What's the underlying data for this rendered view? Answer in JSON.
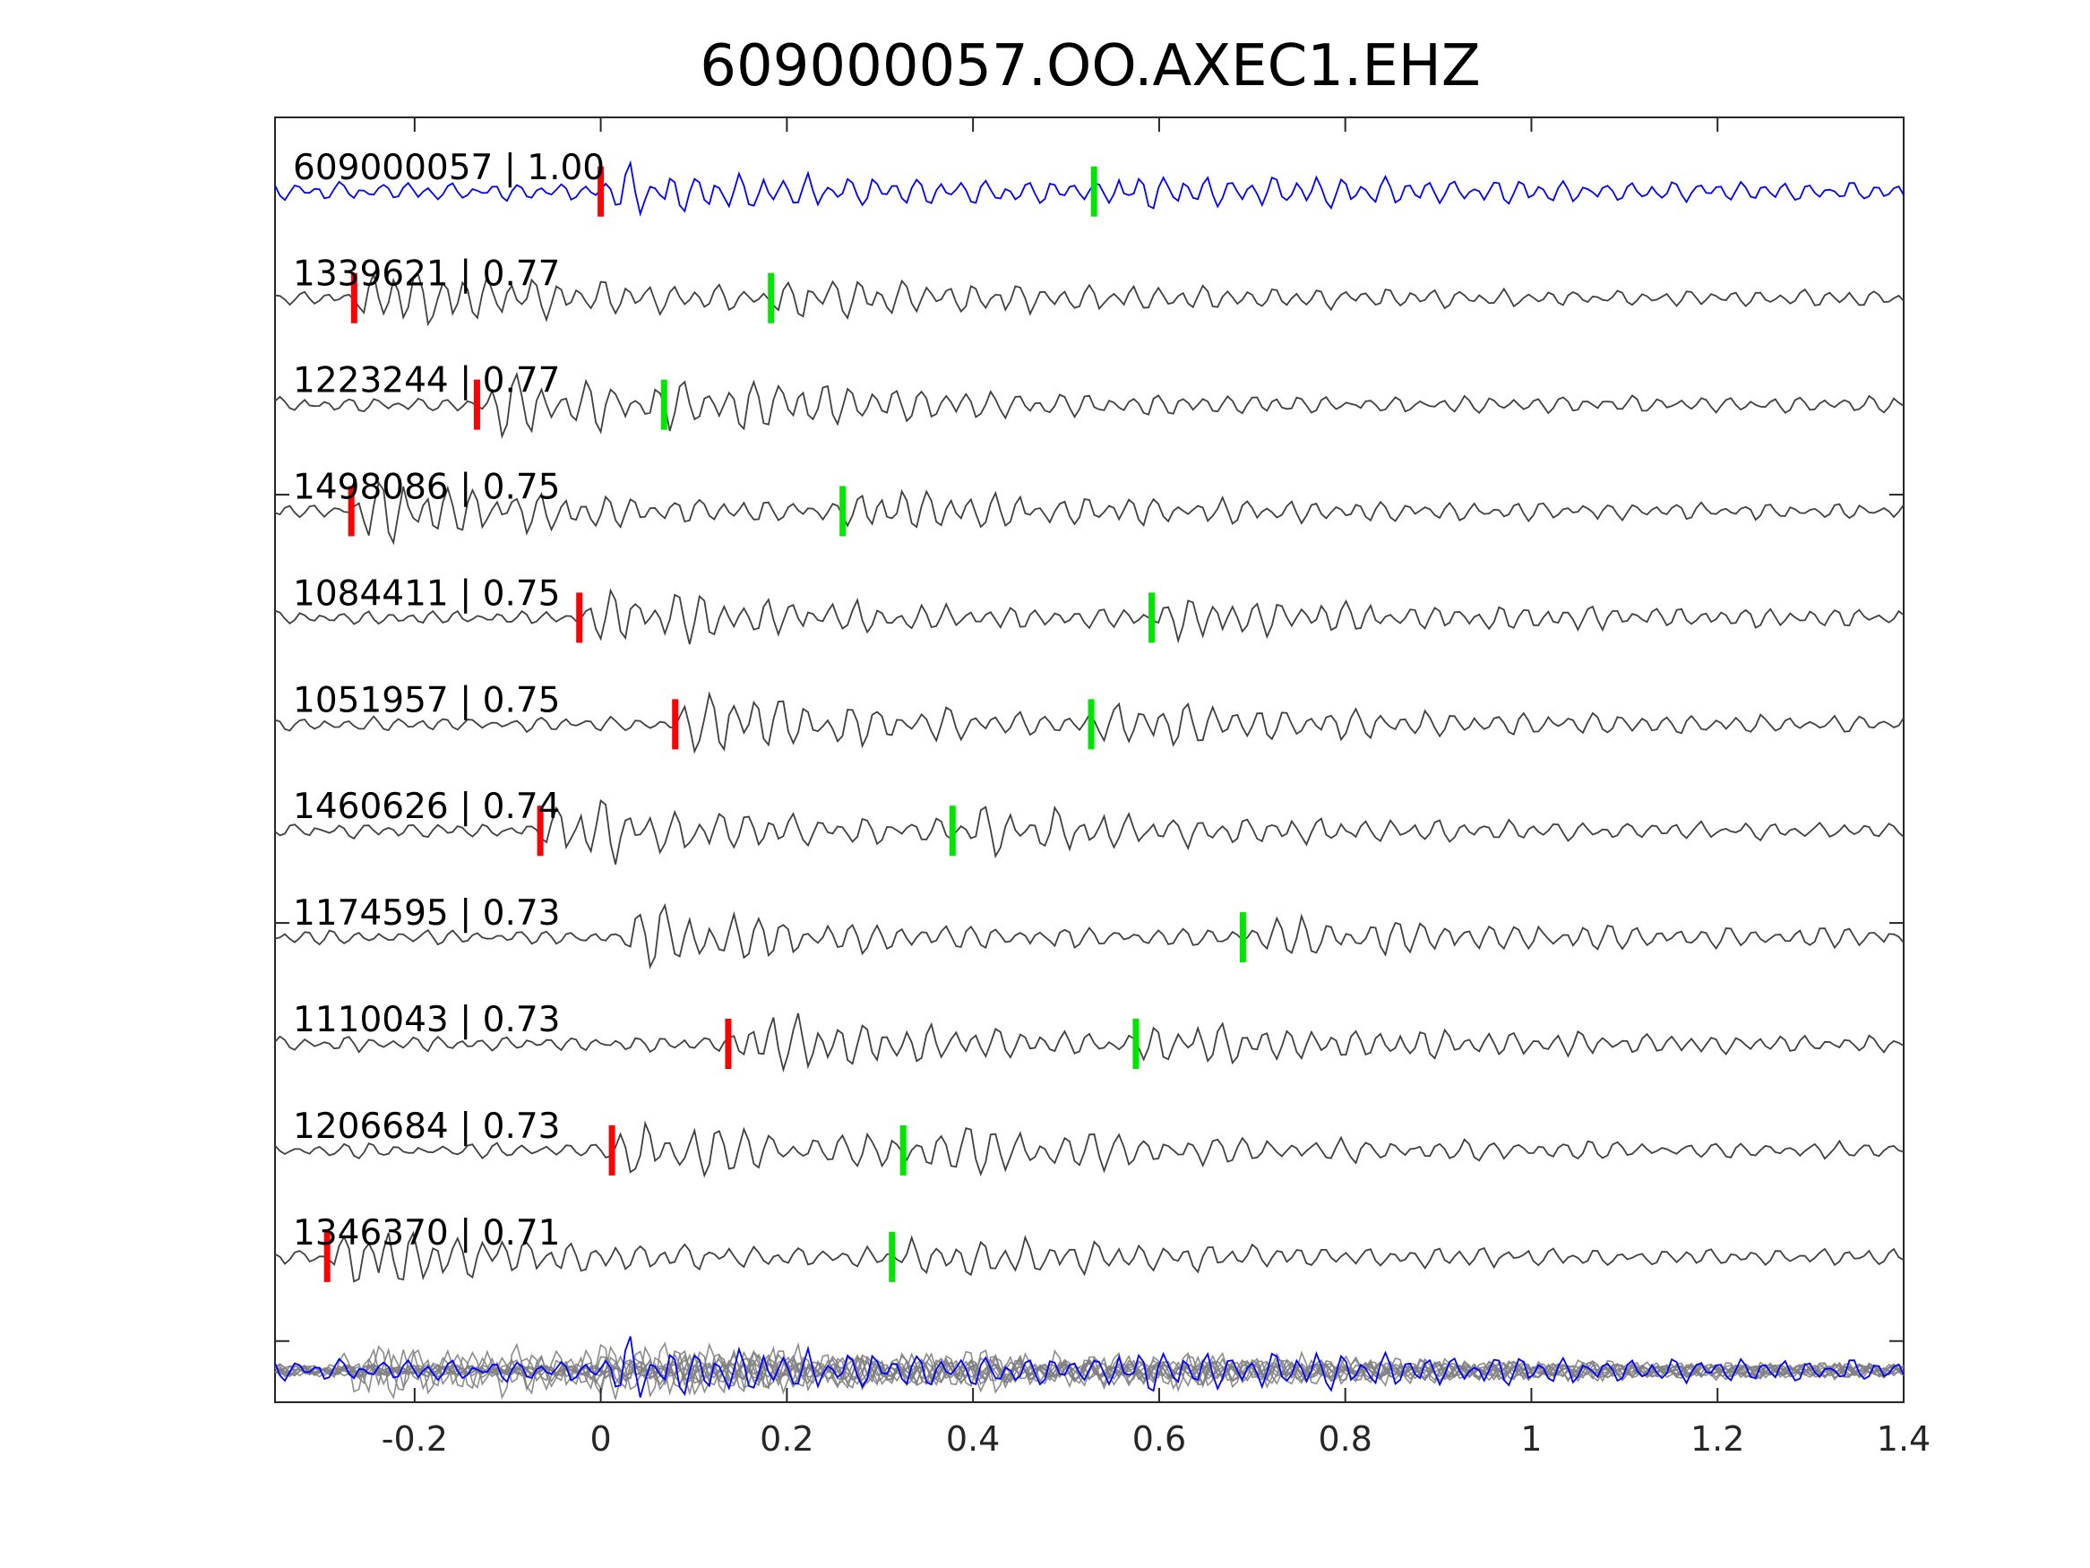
{
  "chart_data": {
    "type": "line",
    "title": "609000057.OO.AXEC1.EHZ",
    "xlabel": "",
    "ylabel": "",
    "xlim": [
      -0.35,
      1.4
    ],
    "xticks": [
      -0.2,
      0,
      0.2,
      0.4,
      0.6,
      0.8,
      1,
      1.2,
      1.4
    ],
    "xtick_labels": [
      "-0.2",
      "0",
      "0.2",
      "0.4",
      "0.6",
      "0.8",
      "1",
      "1.2",
      "1.4"
    ],
    "grid": false,
    "colors": {
      "template": "#0000ff",
      "trace": "#404040",
      "stack": "#808080",
      "p_pick": "#ff0000",
      "s_pick": "#00e600"
    },
    "series": [
      {
        "name": "609000057 | 1.00",
        "p_pick": 0.0,
        "s_pick": 0.53,
        "role": "template"
      },
      {
        "name": "1339621 | 0.77",
        "p_pick": -0.265,
        "s_pick": 0.183
      },
      {
        "name": "1223244 | 0.77",
        "p_pick": -0.133,
        "s_pick": 0.068
      },
      {
        "name": "1498086 | 0.75",
        "p_pick": -0.268,
        "s_pick": 0.26
      },
      {
        "name": "1084411 | 0.75",
        "p_pick": -0.023,
        "s_pick": 0.592
      },
      {
        "name": "1051957 | 0.75",
        "p_pick": 0.08,
        "s_pick": 0.527
      },
      {
        "name": "1460626 | 0.74",
        "p_pick": -0.065,
        "s_pick": 0.378
      },
      {
        "name": "1174595 | 0.73",
        "p_pick": null,
        "s_pick": 0.69
      },
      {
        "name": "1110043 | 0.73",
        "p_pick": 0.137,
        "s_pick": 0.575
      },
      {
        "name": "1206684 | 0.73",
        "p_pick": 0.012,
        "s_pick": 0.325
      },
      {
        "name": "1346370 | 0.71",
        "p_pick": -0.294,
        "s_pick": 0.313
      }
    ],
    "stack_row": "overlay of all traces"
  }
}
